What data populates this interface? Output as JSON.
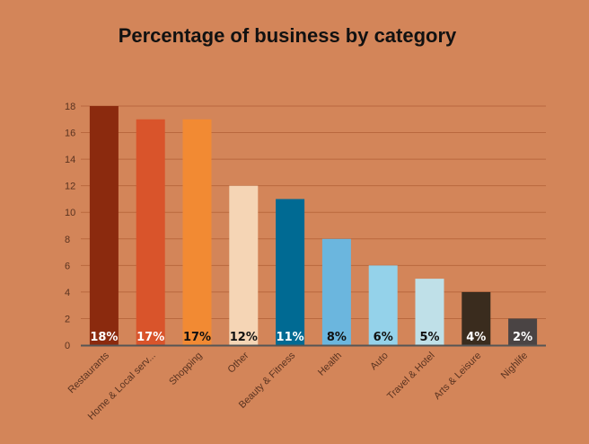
{
  "chart_data": {
    "type": "bar",
    "title": "Percentage of business by category",
    "xlabel": "",
    "ylabel": "",
    "ylim": [
      0,
      18
    ],
    "yticks": [
      0,
      2,
      4,
      6,
      8,
      10,
      12,
      14,
      16,
      18
    ],
    "grid": true,
    "categories": [
      "Restaurants",
      "Home & Local serv...",
      "Shopping",
      "Other",
      "Beauty & Fitness",
      "Health",
      "Auto",
      "Travel & Hotel",
      "Arts & Leisure",
      "Nighlife"
    ],
    "values": [
      18,
      17,
      17,
      12,
      11,
      8,
      6,
      5,
      4,
      2
    ],
    "data_labels": [
      "18%",
      "17%",
      "17%",
      "12%",
      "11%",
      "8%",
      "6%",
      "5%",
      "4%",
      "2%"
    ],
    "colors": [
      "#8b2a0e",
      "#d9542b",
      "#f28a33",
      "#f5d5b5",
      "#006a93",
      "#6bb6de",
      "#94d2ea",
      "#bfe0e8",
      "#3a2c1e",
      "#4a4444"
    ],
    "label_colors": [
      "#ffffff",
      "#ffffff",
      "#111111",
      "#111111",
      "#ffffff",
      "#111111",
      "#111111",
      "#111111",
      "#ffffff",
      "#ffffff"
    ]
  },
  "colors": {
    "background": "#d38559",
    "gridline": "#b9683e",
    "axis": "#555555"
  }
}
